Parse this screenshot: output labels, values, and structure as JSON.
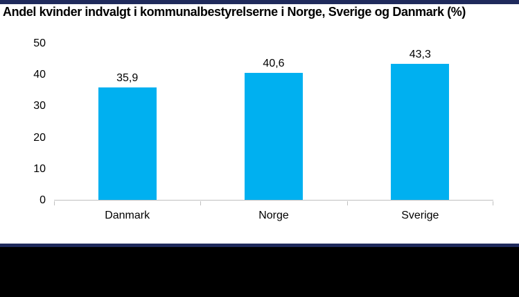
{
  "title": "Andel kvinder indvalgt i kommunalbestyrelserne i Norge, Sverige og Danmark (%)",
  "colors": {
    "bar": "#00B0F0",
    "accent_navy": "#1F2A5C",
    "footer_black": "#000000",
    "axis_line": "#BFBFBF",
    "text": "#000000"
  },
  "chart_data": {
    "type": "bar",
    "title": "Andel kvinder indvalgt i kommunalbestyrelserne i Norge, Sverige og Danmark (%)",
    "categories": [
      "Danmark",
      "Norge",
      "Sverige"
    ],
    "values": [
      35.9,
      40.6,
      43.3
    ],
    "value_labels": [
      "35,9",
      "40,6",
      "43,3"
    ],
    "xlabel": "",
    "ylabel": "",
    "ylim": [
      0,
      50
    ],
    "yticks": [
      0,
      10,
      20,
      30,
      40,
      50
    ],
    "ytick_labels": [
      "0",
      "10",
      "20",
      "30",
      "40",
      "50"
    ],
    "grid": false,
    "legend": false,
    "bar_color": "#00B0F0"
  }
}
